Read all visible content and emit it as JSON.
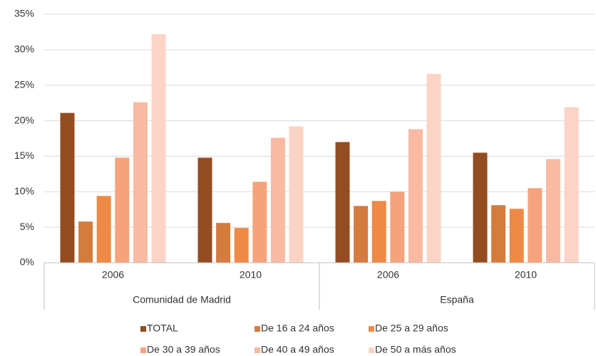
{
  "chart_data": {
    "type": "bar",
    "categories": [
      "2006",
      "2010",
      "2006",
      "2010"
    ],
    "groups": [
      "Comunidad de Madrid",
      "España"
    ],
    "series": [
      {
        "name": "TOTAL",
        "color": "#934d21",
        "values": [
          21.1,
          14.8,
          17.0,
          15.5
        ]
      },
      {
        "name": "De 16 a 24 años",
        "color": "#d47b3e",
        "values": [
          5.8,
          5.6,
          8.0,
          8.1
        ]
      },
      {
        "name": "De 25 a 29 años",
        "color": "#ee8a45",
        "values": [
          9.4,
          4.9,
          8.7,
          7.6
        ]
      },
      {
        "name": "De 30 a 39 años",
        "color": "#f6a37d",
        "values": [
          14.8,
          11.4,
          10.0,
          10.5
        ]
      },
      {
        "name": "De 40 a 49 años",
        "color": "#f8baa2",
        "values": [
          22.6,
          17.6,
          18.8,
          14.6
        ]
      },
      {
        "name": "De 50 a más años",
        "color": "#fbd4c6",
        "values": [
          32.2,
          19.2,
          26.6,
          21.9
        ]
      }
    ],
    "ylim": [
      0,
      35
    ],
    "yticks": [
      {
        "value": 0,
        "label": "0%"
      },
      {
        "value": 5,
        "label": "5%"
      },
      {
        "value": 10,
        "label": "10%"
      },
      {
        "value": 15,
        "label": "15%"
      },
      {
        "value": 20,
        "label": "20%"
      },
      {
        "value": 25,
        "label": "25%"
      },
      {
        "value": 30,
        "label": "30%"
      },
      {
        "value": 35,
        "label": "35%"
      }
    ],
    "grid": true
  }
}
